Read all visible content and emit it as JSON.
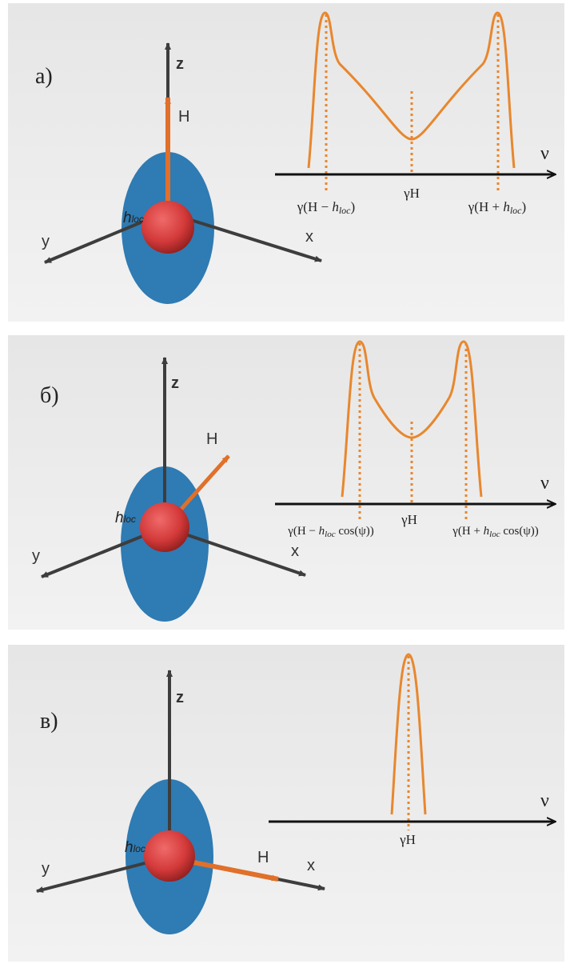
{
  "panels": [
    {
      "id": "a",
      "label": "а)",
      "axes": {
        "z": "z",
        "x": "x",
        "y": "y"
      },
      "field_label": "H",
      "local_field_label": "h",
      "local_field_sub": "loc",
      "spectrum": {
        "axis_label": "ν",
        "center_label": "γH",
        "left_label": [
          "γ(H − ",
          "h",
          "loc",
          ")"
        ],
        "right_label": [
          "γ(H + ",
          "h",
          "loc",
          ")"
        ]
      }
    },
    {
      "id": "b",
      "label": "б)",
      "axes": {
        "z": "z",
        "x": "x",
        "y": "y"
      },
      "field_label": "H",
      "local_field_label": "h",
      "local_field_sub": "loc",
      "spectrum": {
        "axis_label": "ν",
        "center_label": "γH",
        "left_label": [
          "γ(H − ",
          "h",
          "loc",
          " cos(ψ))"
        ],
        "right_label": [
          "γ(H + ",
          "h",
          "loc",
          " cos(ψ))"
        ]
      }
    },
    {
      "id": "c",
      "label": "в)",
      "axes": {
        "z": "z",
        "x": "x",
        "y": "y"
      },
      "field_label": "H",
      "local_field_label": "h",
      "local_field_sub": "loc",
      "spectrum": {
        "axis_label": "ν",
        "center_label": "γH"
      }
    }
  ],
  "colors": {
    "disk": "#2f7bb3",
    "sphere": "#d43a3a",
    "field_arrow": "#e0702a",
    "spectrum_line": "#e8872e",
    "axis": "#3d3d3d"
  }
}
